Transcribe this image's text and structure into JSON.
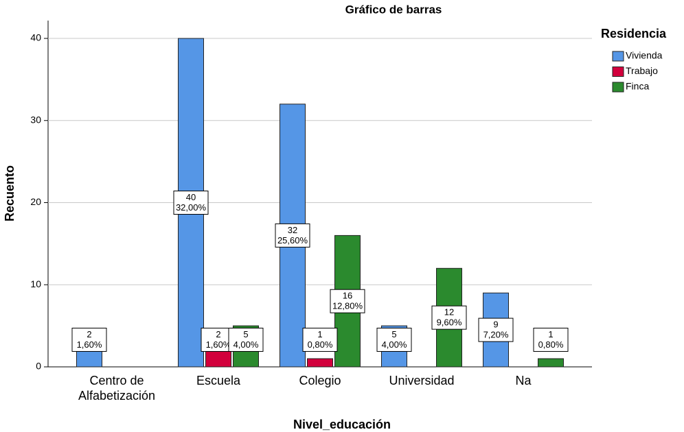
{
  "chart_data": {
    "type": "bar",
    "title": "Gráfico de barras",
    "x_label": "Nivel_educación",
    "y_label": "Recuento",
    "legend_title": "Residencia",
    "legend": "right",
    "grid": true,
    "categories": [
      "Centro de Alfabetización",
      "Escuela",
      "Colegio",
      "Universidad",
      "Na"
    ],
    "series": [
      {
        "name": "Vivienda",
        "color": "#5596e6",
        "values": [
          2,
          40,
          32,
          5,
          9
        ],
        "percents": [
          1.6,
          32,
          25.6,
          4,
          7.2
        ],
        "percent_labels": [
          "1,60%",
          "32,00%",
          "25,60%",
          "4,00%",
          "7,20%"
        ]
      },
      {
        "name": "Trabajo",
        "color": "#d2003c",
        "values": [
          null,
          2,
          1,
          null,
          null
        ],
        "percents": [
          null,
          1.6,
          0.8,
          null,
          null
        ],
        "percent_labels": [
          null,
          "1,60%",
          "0,80%",
          null,
          null
        ]
      },
      {
        "name": "Finca",
        "color": "#2b8a2e",
        "values": [
          null,
          5,
          16,
          12,
          1
        ],
        "percents": [
          null,
          4,
          12.8,
          9.6,
          0.8
        ],
        "percent_labels": [
          null,
          "4,00%",
          "12,80%",
          "9,60%",
          "0,80%"
        ]
      }
    ],
    "ylim": [
      0,
      40
    ],
    "yticks": [
      0,
      10,
      20,
      30,
      40
    ]
  }
}
